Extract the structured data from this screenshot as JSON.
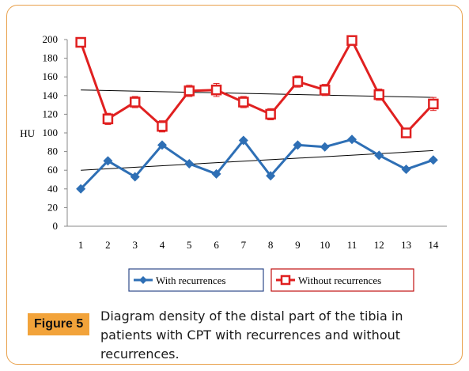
{
  "chart_data": {
    "type": "line",
    "ylabel": "HU",
    "xlabel": "",
    "ylim": [
      0,
      200
    ],
    "yticks": [
      0,
      20,
      40,
      60,
      80,
      100,
      120,
      140,
      160,
      180,
      200
    ],
    "categories": [
      "1",
      "2",
      "3",
      "4",
      "5",
      "6",
      "7",
      "8",
      "9",
      "10",
      "11",
      "12",
      "13",
      "14"
    ],
    "series": [
      {
        "name": "With recurrences",
        "color": "#2e6fb5",
        "marker": "diamond",
        "values": [
          40,
          70,
          53,
          87,
          67,
          56,
          92,
          54,
          87,
          85,
          93,
          76,
          61,
          71
        ],
        "trend": [
          60,
          81
        ]
      },
      {
        "name": "Without recurrences",
        "color": "#e02020",
        "marker": "square",
        "values": [
          197,
          115,
          133,
          107,
          145,
          146,
          133,
          120,
          155,
          146,
          199,
          141,
          100,
          131
        ],
        "errors": [
          0,
          6,
          6,
          6,
          6,
          7,
          6,
          6,
          6,
          6,
          0,
          6,
          5,
          7
        ],
        "trend": [
          146,
          138
        ]
      }
    ],
    "legend_position": "bottom",
    "grid": false
  },
  "caption": {
    "label": "Figure 5",
    "text": "Diagram density of the distal part of the tibia in patients with CPT with recurrences and without recurrences."
  }
}
